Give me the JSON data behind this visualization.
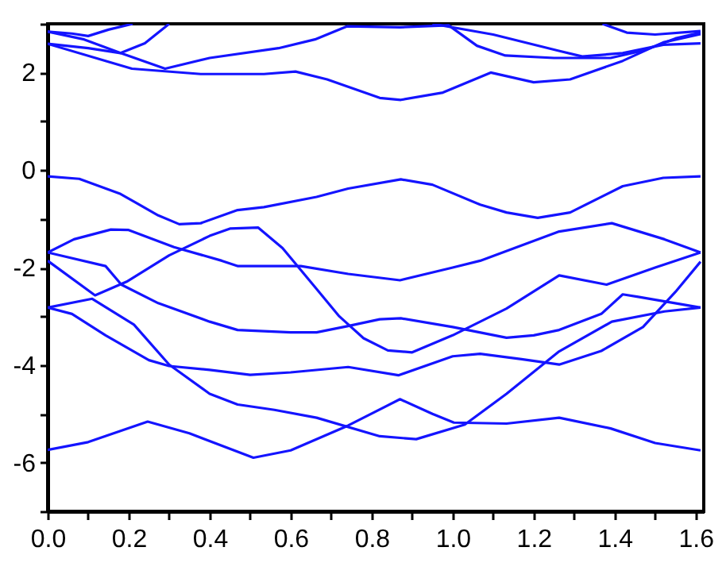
{
  "chart_data": {
    "type": "line",
    "xlim": [
      0,
      1.62
    ],
    "ylim": [
      -7,
      3
    ],
    "xticks": [
      {
        "value": 0,
        "label": "0.0"
      },
      {
        "value": 0.1,
        "label": null
      },
      {
        "value": 0.2,
        "label": "0.2"
      },
      {
        "value": 0.3,
        "label": null
      },
      {
        "value": 0.4,
        "label": "0.4"
      },
      {
        "value": 0.5,
        "label": null
      },
      {
        "value": 0.6,
        "label": "0.6"
      },
      {
        "value": 0.7,
        "label": null
      },
      {
        "value": 0.8,
        "label": "0.8"
      },
      {
        "value": 0.9,
        "label": null
      },
      {
        "value": 1.0,
        "label": "1.0"
      },
      {
        "value": 1.1,
        "label": null
      },
      {
        "value": 1.2,
        "label": "1.2"
      },
      {
        "value": 1.3,
        "label": null
      },
      {
        "value": 1.4,
        "label": "1.4"
      },
      {
        "value": 1.5,
        "label": null
      },
      {
        "value": 1.6,
        "label": "1.6"
      }
    ],
    "yticks": [
      {
        "value": -7,
        "label": null
      },
      -6,
      {
        "value": -5,
        "label": null
      },
      -4,
      {
        "value": -3,
        "label": null
      },
      -2,
      {
        "value": -1,
        "label": null
      },
      0,
      {
        "value": 1,
        "label": null
      },
      2,
      {
        "value": 3,
        "label": null
      }
    ],
    "series": [
      {
        "color": "#1414ff",
        "x": [
          0,
          0.06,
          0.1,
          0.15,
          0.21
        ],
        "values": [
          2.84,
          2.8,
          2.75,
          2.88,
          3.0
        ]
      },
      {
        "color": "#1414ff",
        "x": [
          0,
          0.1,
          0.18,
          0.24,
          0.3
        ],
        "values": [
          2.59,
          2.5,
          2.4,
          2.6,
          3.0
        ]
      },
      {
        "color": "#1414ff",
        "x": [
          0,
          0.09,
          0.18,
          0.29,
          0.4,
          0.57,
          0.66,
          0.74,
          0.87,
          0.99,
          1.06,
          1.13,
          1.25,
          1.39,
          1.47,
          1.55,
          1.612
        ],
        "values": [
          2.84,
          2.68,
          2.4,
          2.08,
          2.3,
          2.5,
          2.68,
          2.95,
          2.93,
          2.97,
          2.55,
          2.35,
          2.3,
          2.3,
          2.45,
          2.7,
          2.82
        ]
      },
      {
        "color": "#1414ff",
        "x": [
          0.95,
          1.1,
          1.26,
          1.32,
          1.42,
          1.52,
          1.612
        ],
        "values": [
          3.0,
          2.78,
          2.45,
          2.33,
          2.4,
          2.57,
          2.6
        ]
      },
      {
        "color": "#1414ff",
        "x": [
          1.37,
          1.43,
          1.5,
          1.612
        ],
        "values": [
          3.0,
          2.82,
          2.78,
          2.85
        ]
      },
      {
        "color": "#1414ff",
        "x": [
          0,
          0.143,
          0.208,
          0.378,
          0.534,
          0.612,
          0.69,
          0.82,
          0.872,
          0.976,
          1.094,
          1.2,
          1.29,
          1.42,
          1.52,
          1.612
        ],
        "values": [
          2.59,
          2.24,
          2.08,
          1.97,
          1.97,
          2.02,
          1.86,
          1.48,
          1.44,
          1.59,
          2.0,
          1.8,
          1.86,
          2.24,
          2.62,
          2.79
        ]
      },
      {
        "color": "#1414ff",
        "x": [
          0,
          0.078,
          0.18,
          0.273,
          0.325,
          0.378,
          0.469,
          0.534,
          0.664,
          0.742,
          0.872,
          0.95,
          1.068,
          1.133,
          1.21,
          1.29,
          1.42,
          1.52,
          1.612
        ],
        "values": [
          -0.13,
          -0.18,
          -0.49,
          -0.93,
          -1.11,
          -1.09,
          -0.82,
          -0.76,
          -0.55,
          -0.38,
          -0.19,
          -0.3,
          -0.71,
          -0.87,
          -0.98,
          -0.87,
          -0.33,
          -0.16,
          -0.13
        ]
      },
      {
        "color": "#1414ff",
        "x": [
          0,
          0.065,
          0.156,
          0.2,
          0.312,
          0.43,
          0.47,
          0.625,
          0.742,
          0.87,
          1.0,
          1.068,
          1.263,
          1.393,
          1.523,
          1.612
        ],
        "values": [
          -1.69,
          -1.42,
          -1.22,
          -1.23,
          -1.58,
          -1.86,
          -1.97,
          -1.97,
          -2.13,
          -2.26,
          -2.0,
          -1.86,
          -1.26,
          -1.09,
          -1.42,
          -1.69
        ]
      },
      {
        "color": "#1414ff",
        "x": [
          0,
          0.143,
          0.182,
          0.273,
          0.4,
          0.469,
          0.6,
          0.664,
          0.742,
          0.82,
          0.872,
          1.0,
          1.133,
          1.2,
          1.263,
          1.367,
          1.42,
          1.458,
          1.612
        ],
        "values": [
          -1.69,
          -1.97,
          -2.35,
          -2.73,
          -3.11,
          -3.28,
          -3.33,
          -3.33,
          -3.2,
          -3.06,
          -3.04,
          -3.22,
          -3.44,
          -3.39,
          -3.28,
          -2.95,
          -2.55,
          -2.6,
          -2.82
        ]
      },
      {
        "color": "#1414ff",
        "x": [
          0,
          0.117,
          0.195,
          0.3,
          0.4,
          0.45,
          0.52,
          0.58,
          0.62,
          0.66,
          0.72,
          0.78,
          0.84,
          0.9,
          1.0,
          1.133,
          1.263,
          1.38,
          1.5,
          1.612
        ],
        "values": [
          -1.86,
          -2.57,
          -2.29,
          -1.75,
          -1.35,
          -1.2,
          -1.18,
          -1.6,
          -2.0,
          -2.4,
          -3.0,
          -3.45,
          -3.7,
          -3.74,
          -3.39,
          -2.84,
          -2.16,
          -2.35,
          -2.0,
          -1.69
        ]
      },
      {
        "color": "#1414ff",
        "x": [
          0,
          0.11,
          0.213,
          0.3,
          0.4,
          0.469,
          0.56,
          0.664,
          0.82,
          0.91,
          1.03,
          1.133,
          1.263,
          1.393,
          1.523,
          1.612
        ],
        "values": [
          -2.82,
          -2.64,
          -3.17,
          -3.99,
          -4.59,
          -4.81,
          -4.92,
          -5.08,
          -5.46,
          -5.52,
          -5.22,
          -4.59,
          -3.72,
          -3.11,
          -2.9,
          -2.82
        ]
      },
      {
        "color": "#1414ff",
        "x": [
          0,
          0.06,
          0.143,
          0.25,
          0.3,
          0.4,
          0.5,
          0.6,
          0.742,
          0.866,
          1.0,
          1.068,
          1.17,
          1.263,
          1.367,
          1.47,
          1.55,
          1.612
        ],
        "values": [
          -2.82,
          -2.95,
          -3.39,
          -3.9,
          -4.02,
          -4.1,
          -4.2,
          -4.15,
          -4.04,
          -4.21,
          -3.82,
          -3.77,
          -3.88,
          -3.99,
          -3.71,
          -3.22,
          -2.5,
          -1.88
        ]
      },
      {
        "color": "#1414ff",
        "x": [
          0,
          0.1,
          0.247,
          0.35,
          0.508,
          0.6,
          0.742,
          0.87,
          0.95,
          1.003,
          1.133,
          1.263,
          1.39,
          1.5,
          1.612
        ],
        "values": [
          -5.74,
          -5.58,
          -5.16,
          -5.4,
          -5.9,
          -5.75,
          -5.24,
          -4.7,
          -5.0,
          -5.18,
          -5.2,
          -5.08,
          -5.3,
          -5.6,
          -5.75
        ]
      }
    ]
  }
}
